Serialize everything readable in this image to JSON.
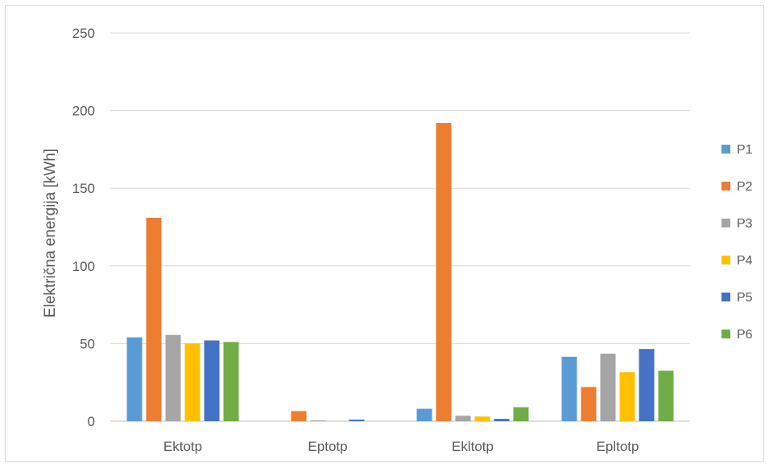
{
  "chart_data": {
    "type": "bar",
    "title": "",
    "xlabel": "",
    "ylabel": "Električna energija [kWh]",
    "ylim": [
      0,
      250
    ],
    "yticks": [
      0,
      50,
      100,
      150,
      200,
      250
    ],
    "grid": true,
    "legend_position": "right",
    "categories": [
      "Ektotp",
      "Eptotp",
      "Ekltotp",
      "Epltotp"
    ],
    "series": [
      {
        "name": "P1",
        "color": "#5b9bd5",
        "values": [
          54,
          0,
          8,
          41.5
        ]
      },
      {
        "name": "P2",
        "color": "#ed7d31",
        "values": [
          131,
          6.5,
          192,
          22
        ]
      },
      {
        "name": "P3",
        "color": "#a5a5a5",
        "values": [
          55.5,
          0.5,
          3.5,
          43.5
        ]
      },
      {
        "name": "P4",
        "color": "#ffc000",
        "values": [
          50,
          0,
          3,
          31.5
        ]
      },
      {
        "name": "P5",
        "color": "#4472c4",
        "values": [
          52,
          1,
          1.5,
          46.5
        ]
      },
      {
        "name": "P6",
        "color": "#70ad47",
        "values": [
          51,
          0,
          9,
          32.5
        ]
      }
    ]
  }
}
